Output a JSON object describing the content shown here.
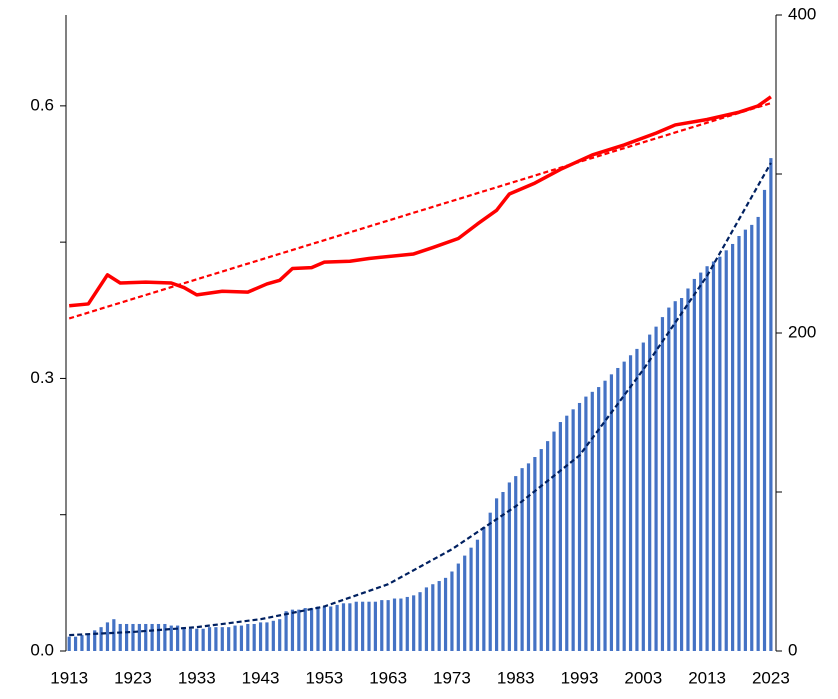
{
  "chart_data": {
    "type": "bar",
    "x": [
      1913,
      1914,
      1915,
      1916,
      1917,
      1918,
      1919,
      1920,
      1921,
      1922,
      1923,
      1924,
      1925,
      1926,
      1927,
      1928,
      1929,
      1930,
      1931,
      1932,
      1933,
      1934,
      1935,
      1936,
      1937,
      1938,
      1939,
      1940,
      1941,
      1942,
      1943,
      1944,
      1945,
      1946,
      1947,
      1948,
      1949,
      1950,
      1951,
      1952,
      1953,
      1954,
      1955,
      1956,
      1957,
      1958,
      1959,
      1960,
      1961,
      1962,
      1963,
      1964,
      1965,
      1966,
      1967,
      1968,
      1969,
      1970,
      1971,
      1972,
      1973,
      1974,
      1975,
      1976,
      1977,
      1978,
      1979,
      1980,
      1981,
      1982,
      1983,
      1984,
      1985,
      1986,
      1987,
      1988,
      1989,
      1990,
      1991,
      1992,
      1993,
      1994,
      1995,
      1996,
      1997,
      1998,
      1999,
      2000,
      2001,
      2002,
      2003,
      2004,
      2005,
      2006,
      2007,
      2008,
      2009,
      2010,
      2011,
      2012,
      2013,
      2014,
      2015,
      2016,
      2017,
      2018,
      2019,
      2020,
      2021,
      2022,
      2023
    ],
    "series": [
      {
        "type": "bar",
        "color": "#4472c4",
        "axis": "y2",
        "values": [
          9,
          9,
          10,
          11,
          13,
          15,
          18,
          20,
          17,
          17,
          17,
          17,
          17,
          17,
          17,
          17,
          16,
          16,
          15,
          14,
          14,
          14,
          15,
          15,
          15,
          15,
          16,
          16,
          17,
          17,
          18,
          18,
          19,
          20,
          25,
          26,
          26,
          27,
          27,
          28,
          28,
          28,
          29,
          30,
          30,
          31,
          31,
          31,
          31,
          32,
          32,
          33,
          33,
          34,
          35,
          37,
          40,
          42,
          44,
          46,
          50,
          55,
          60,
          65,
          70,
          78,
          87,
          96,
          100,
          106,
          110,
          115,
          118,
          122,
          127,
          132,
          138,
          144,
          148,
          152,
          156,
          160,
          163,
          166,
          170,
          174,
          178,
          182,
          186,
          190,
          194,
          199,
          204,
          210,
          216,
          220,
          222,
          228,
          234,
          238,
          242,
          245,
          248,
          252,
          256,
          261,
          265,
          268,
          273,
          290,
          310
        ]
      },
      {
        "type": "line",
        "color": "#ff0000",
        "x": [
          1913,
          1916,
          1919,
          1921,
          1925,
          1929,
          1931,
          1933,
          1937,
          1941,
          1944,
          1946,
          1948,
          1951,
          1953,
          1957,
          1960,
          1967,
          1970,
          1974,
          1977,
          1980,
          1982,
          1986,
          1990,
          1995,
          2000,
          2005,
          2008,
          2013,
          2018,
          2021,
          2023
        ],
        "values": [
          0.38,
          0.382,
          0.414,
          0.405,
          0.406,
          0.405,
          0.4,
          0.392,
          0.396,
          0.395,
          0.404,
          0.408,
          0.421,
          0.422,
          0.428,
          0.429,
          0.432,
          0.437,
          0.444,
          0.454,
          0.47,
          0.485,
          0.503,
          0.515,
          0.53,
          0.546,
          0.557,
          0.57,
          0.579,
          0.585,
          0.593,
          0.6,
          0.61
        ]
      },
      {
        "type": "line",
        "dashed": true,
        "color": "#ff0000",
        "x": [
          1913,
          2023
        ],
        "values": [
          0.366,
          0.603
        ]
      },
      {
        "type": "line",
        "dashed": true,
        "color": "#002060",
        "axis": "y2",
        "x": [
          1913,
          1923,
          1933,
          1943,
          1953,
          1963,
          1973,
          1983,
          1993,
          2003,
          2013,
          2023
        ],
        "values": [
          10,
          12,
          15,
          20,
          28,
          42,
          64,
          91,
          123,
          177,
          236,
          307
        ]
      }
    ],
    "xlim": [
      1912.5,
      2023.8
    ],
    "xticks": [
      1913,
      1923,
      1933,
      1943,
      1953,
      1963,
      1973,
      1983,
      1993,
      2003,
      2013,
      2023
    ],
    "ylim": [
      0,
      0.7
    ],
    "yticks": [
      {
        "value": 0,
        "label": "0.0"
      },
      0.3,
      0.6
    ],
    "yticks_minor": [
      0.15,
      0.45
    ],
    "y2lim": [
      0,
      400
    ],
    "y2ticks": [
      0,
      200,
      400
    ],
    "y2ticks_minor": [
      100,
      300
    ]
  }
}
